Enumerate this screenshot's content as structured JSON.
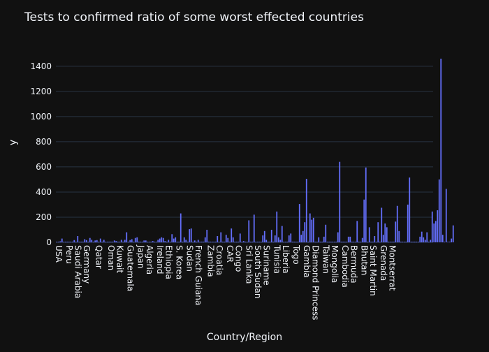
{
  "chart_data": {
    "type": "bar",
    "title": "Tests to confirmed ratio of some worst effected countries",
    "xlabel": "Country/Region",
    "ylabel": "y",
    "ylim": [
      0,
      1560
    ],
    "yticks": [
      0,
      200,
      400,
      600,
      800,
      1000,
      1200,
      1400
    ],
    "grid": true,
    "bar_color": "#636efa",
    "num_bars": 216,
    "x_labels": [
      {
        "label": "USA",
        "index": 1
      },
      {
        "label": "Peru",
        "index": 7
      },
      {
        "label": "Saudi Arabia",
        "index": 12
      },
      {
        "label": "Germany",
        "index": 17
      },
      {
        "label": "Qatar",
        "index": 24
      },
      {
        "label": "Oman",
        "index": 31
      },
      {
        "label": "Kuwait",
        "index": 36
      },
      {
        "label": "Guatemala",
        "index": 42
      },
      {
        "label": "Japan",
        "index": 48
      },
      {
        "label": "Algeria",
        "index": 53
      },
      {
        "label": "Ireland",
        "index": 59
      },
      {
        "label": "Ethiopia",
        "index": 64
      },
      {
        "label": "S. Korea",
        "index": 70
      },
      {
        "label": "Sudan",
        "index": 76
      },
      {
        "label": "French Guiana",
        "index": 81
      },
      {
        "label": "Zambia",
        "index": 88
      },
      {
        "label": "Croatia",
        "index": 93
      },
      {
        "label": "CAR",
        "index": 99
      },
      {
        "label": "Congo",
        "index": 104
      },
      {
        "label": "Sri Lanka",
        "index": 110
      },
      {
        "label": "South Sudan",
        "index": 115
      },
      {
        "label": "Suriname",
        "index": 120
      },
      {
        "label": "Tunisia",
        "index": 126
      },
      {
        "label": "Liberia",
        "index": 131
      },
      {
        "label": "Togo",
        "index": 137
      },
      {
        "label": "Gambia",
        "index": 143
      },
      {
        "label": "Diamond Princess",
        "index": 148
      },
      {
        "label": "Taiwan",
        "index": 154
      },
      {
        "label": "Mongolia",
        "index": 159
      },
      {
        "label": "Cambodia",
        "index": 165
      },
      {
        "label": "Bermuda",
        "index": 170
      },
      {
        "label": "Bhutan",
        "index": 176
      },
      {
        "label": "Saint Martin",
        "index": 181
      },
      {
        "label": "Grenada",
        "index": 187
      },
      {
        "label": "Montserrat",
        "index": 192
      }
    ],
    "values": [
      5,
      5,
      8,
      30,
      5,
      5,
      5,
      5,
      5,
      5,
      18,
      5,
      50,
      5,
      5,
      5,
      25,
      18,
      5,
      35,
      20,
      5,
      15,
      18,
      5,
      30,
      5,
      20,
      5,
      5,
      5,
      5,
      5,
      15,
      10,
      5,
      5,
      20,
      5,
      20,
      80,
      5,
      18,
      25,
      5,
      35,
      40,
      5,
      5,
      5,
      15,
      15,
      5,
      5,
      5,
      10,
      5,
      5,
      20,
      30,
      40,
      35,
      10,
      5,
      20,
      5,
      65,
      30,
      40,
      5,
      5,
      230,
      5,
      40,
      20,
      5,
      105,
      110,
      5,
      15,
      5,
      20,
      5,
      5,
      5,
      40,
      100,
      5,
      5,
      5,
      5,
      5,
      50,
      5,
      80,
      5,
      5,
      60,
      35,
      5,
      110,
      40,
      5,
      5,
      5,
      70,
      5,
      10,
      5,
      5,
      175,
      5,
      5,
      220,
      5,
      5,
      5,
      5,
      55,
      90,
      20,
      5,
      5,
      100,
      5,
      55,
      245,
      40,
      20,
      130,
      5,
      5,
      5,
      55,
      70,
      5,
      5,
      5,
      5,
      305,
      60,
      90,
      160,
      505,
      5,
      230,
      180,
      195,
      5,
      5,
      40,
      5,
      5,
      45,
      140,
      5,
      5,
      5,
      5,
      5,
      5,
      80,
      640,
      5,
      5,
      5,
      5,
      45,
      45,
      5,
      5,
      5,
      170,
      5,
      5,
      35,
      340,
      595,
      5,
      120,
      5,
      5,
      50,
      5,
      160,
      5,
      275,
      60,
      150,
      120,
      5,
      5,
      5,
      5,
      165,
      290,
      90,
      5,
      5,
      5,
      5,
      300,
      515,
      5,
      5,
      5,
      5,
      5,
      45,
      85,
      40,
      20,
      80,
      5,
      20,
      245,
      150,
      170,
      255,
      500,
      1460,
      60,
      5,
      425,
      5,
      5,
      30,
      135
    ]
  }
}
